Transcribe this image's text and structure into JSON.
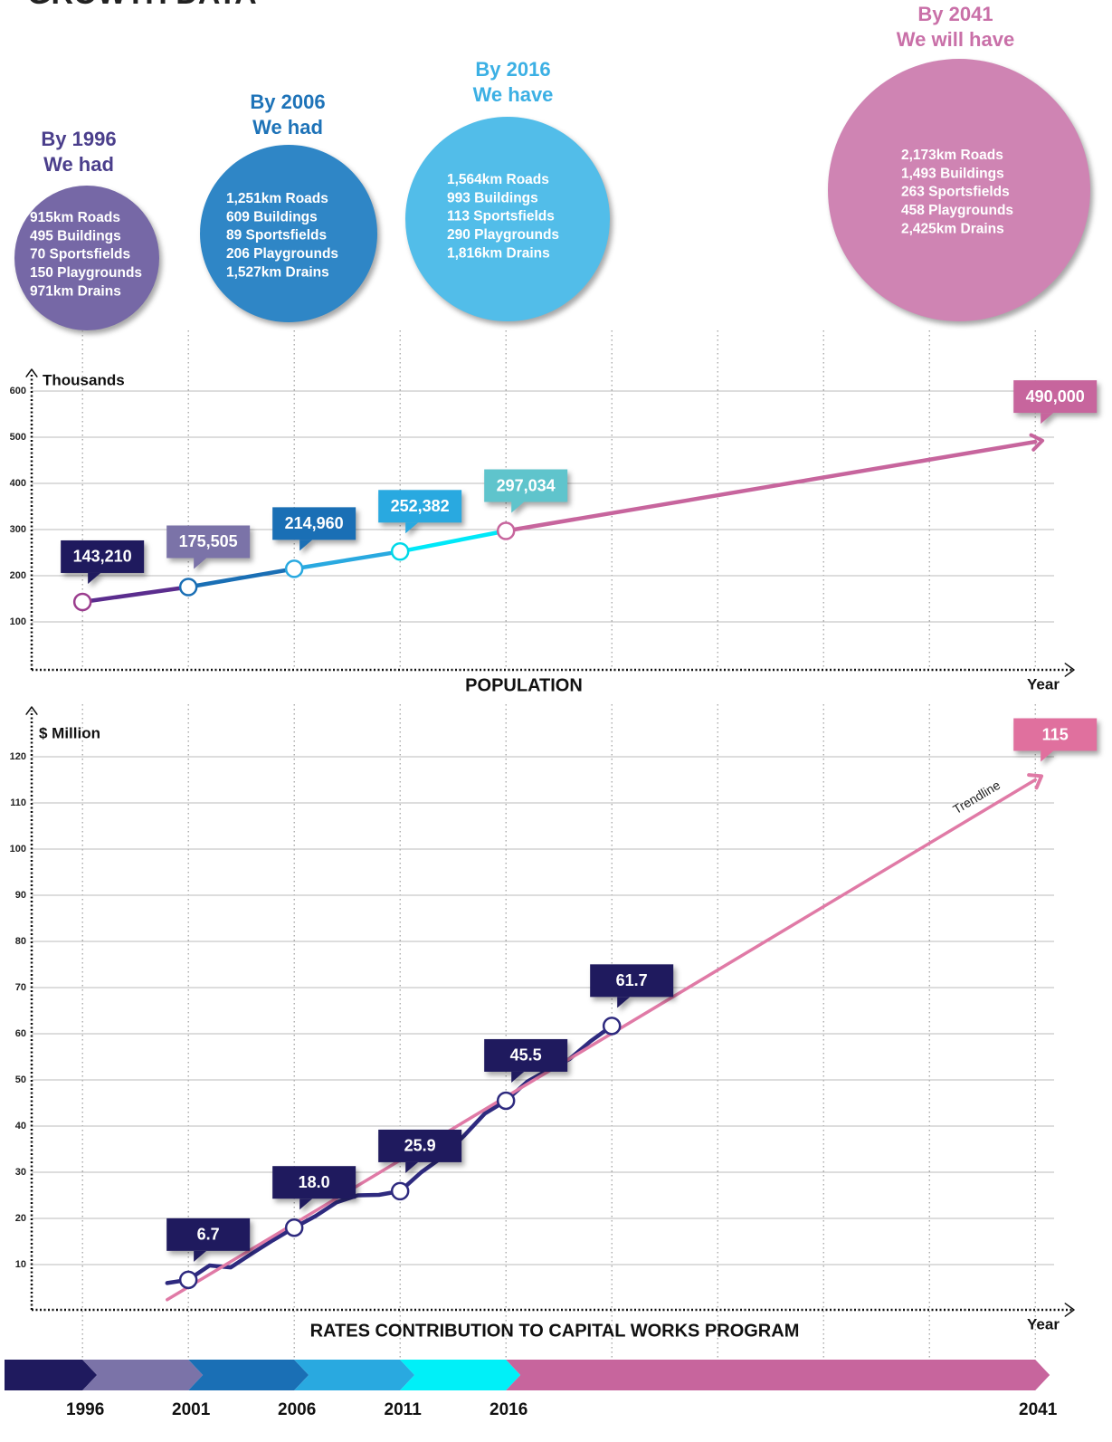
{
  "title": "GROWTH DATA",
  "bubbles": [
    {
      "heading": [
        "By 1996",
        "We had"
      ],
      "lines": [
        "915km Roads",
        "495 Buildings",
        "70 Sportsfields",
        "150 Playgrounds",
        "971km Drains"
      ],
      "color": "#7668a6",
      "heading_color": "#4b3f8c"
    },
    {
      "heading": [
        "By 2006",
        "We had"
      ],
      "lines": [
        "1,251km Roads",
        "609 Buildings",
        "89 Sportsfields",
        "206 Playgrounds",
        "1,527km Drains"
      ],
      "color": "#2f86c6",
      "heading_color": "#1e73b8"
    },
    {
      "heading": [
        "By 2016",
        "We have"
      ],
      "lines": [
        "1,564km Roads",
        "993 Buildings",
        "113 Sportsfields",
        "290 Playgrounds",
        "1,816km Drains"
      ],
      "color": "#52bde9",
      "heading_color": "#3cb0e4"
    },
    {
      "heading": [
        "By 2041",
        "We will have"
      ],
      "lines": [
        "2,173km Roads",
        "1,493 Buildings",
        "263 Sportsfields",
        "458 Playgrounds",
        "2,425km Drains"
      ],
      "color": "#cf84b3",
      "heading_color": "#c970a8"
    }
  ],
  "chart_data": [
    {
      "type": "line",
      "title": "POPULATION",
      "ylabel": "Thousands",
      "xlabel": "Year",
      "xlim": [
        1993.6,
        2043
      ],
      "ylim": [
        0,
        600
      ],
      "yticks": [
        100,
        200,
        300,
        400,
        500,
        600
      ],
      "xticks": [
        1996,
        2001,
        2006,
        2011,
        2016,
        2021,
        2026,
        2031,
        2036,
        2041
      ],
      "grid": true,
      "series": [
        {
          "x": [
            1996,
            2001,
            2006,
            2011,
            2016,
            2041
          ],
          "values": [
            143.21,
            175.505,
            214.96,
            252.382,
            297.034,
            490
          ],
          "value_labels": [
            "143,210",
            "175,505",
            "214,960",
            "252,382",
            "297,034",
            "490,000"
          ],
          "segment_colors": [
            "#5b2d8e",
            "#1a6fb5",
            "#29a9e0",
            "#00e8f8",
            "#c7659d"
          ],
          "marker_colors": [
            "#9b3d8e",
            "#1a6fb5",
            "#29a9e0",
            "#00d8e8",
            "#c7659d",
            "#c7659d"
          ],
          "label_colors": [
            "#1f1a5e",
            "#7b73a8",
            "#1a6fb5",
            "#29a9e0",
            "#5fc4cc",
            "#c7659d"
          ],
          "end_arrow": true
        }
      ]
    },
    {
      "type": "line",
      "title": "RATES CONTRIBUTION TO CAPITAL WORKS PROGRAM",
      "ylabel": "$ Million",
      "xlabel": "Year",
      "xlim": [
        1993.6,
        2043
      ],
      "ylim": [
        0,
        125
      ],
      "yticks": [
        10,
        20,
        30,
        40,
        50,
        60,
        70,
        80,
        90,
        100,
        110,
        120
      ],
      "xticks": [
        1996,
        2001,
        2006,
        2011,
        2016,
        2021,
        2026,
        2031,
        2036,
        2041
      ],
      "grid": true,
      "series": [
        {
          "x": [
            2000,
            2001,
            2002,
            2003,
            2004,
            2005,
            2006,
            2007,
            2008,
            2009,
            2010,
            2011,
            2012,
            2013,
            2014,
            2015,
            2016,
            2017,
            2018,
            2019,
            2020,
            2021
          ],
          "values": [
            6.0,
            6.7,
            9.8,
            9.4,
            12.4,
            15.3,
            18.0,
            20.5,
            23.5,
            25.0,
            25.1,
            25.9,
            30.0,
            33.3,
            37.8,
            42.7,
            45.5,
            49.6,
            52.2,
            54.5,
            58.4,
            61.7
          ],
          "value_labels": [
            null,
            "6.7",
            null,
            null,
            null,
            null,
            "18.0",
            null,
            null,
            null,
            null,
            "25.9",
            null,
            null,
            null,
            null,
            "45.5",
            null,
            null,
            null,
            null,
            "61.7"
          ],
          "color": "#2e2a7f",
          "label_color": "#1f1a5e"
        },
        {
          "name": "Trendline",
          "x": [
            2000,
            2041
          ],
          "values": [
            2.4,
            115
          ],
          "value_labels": [
            null,
            "115"
          ],
          "color": "#e07aa6",
          "label_color": "#e0709e",
          "end_arrow": true
        }
      ]
    }
  ],
  "timeline": {
    "years": [
      1996,
      2001,
      2006,
      2011,
      2016,
      2041
    ],
    "colors": [
      "#1f1a5e",
      "#7b73a8",
      "#1a6fb5",
      "#29a9e0",
      "#00f0f8",
      "#c7659d"
    ]
  }
}
